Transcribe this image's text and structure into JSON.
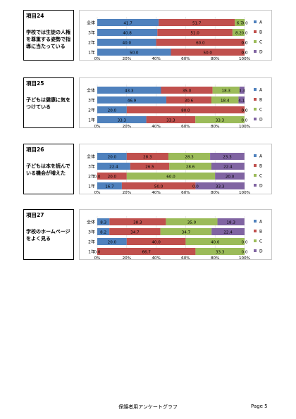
{
  "page": {
    "footer_title": "保護者用アンケートグラフ",
    "page_number": "Page 5"
  },
  "colors": {
    "A": "#4f81bd",
    "B": "#c0504d",
    "C": "#9bbb59",
    "D": "#8064a2"
  },
  "chart_data": [
    {
      "type": "bar",
      "stacked": "horizontal-100",
      "item_title": "項目24",
      "question": "学校では生徒の人権を尊重する姿勢で指導に当たっている",
      "categories": [
        "全体",
        "3年",
        "2年",
        "1年"
      ],
      "series": [
        {
          "name": "A",
          "values": [
            41.7,
            40.8,
            40.0,
            50.0
          ],
          "labels": [
            "41.7",
            "40.8",
            "40.0",
            "50.0"
          ]
        },
        {
          "name": "B",
          "values": [
            51.7,
            51.0,
            60.0,
            50.0
          ],
          "labels": [
            "51.7",
            "51.0",
            "60.0",
            "50.0"
          ]
        },
        {
          "name": "C",
          "values": [
            6.7,
            8.2,
            0.0,
            0.0
          ],
          "labels": [
            "6.7",
            "8.2",
            "0.0",
            "0.0"
          ]
        },
        {
          "name": "D",
          "values": [
            0.0,
            0.0,
            0.0,
            0.0
          ],
          "labels": [
            "0.0",
            "0.0",
            "0.0",
            "0.0"
          ]
        }
      ],
      "x_ticks": [
        "0%",
        "20%",
        "40%",
        "60%",
        "80%",
        "100%"
      ],
      "xlim": [
        0,
        100
      ],
      "legend": [
        "A",
        "B",
        "C",
        "D"
      ]
    },
    {
      "type": "bar",
      "stacked": "horizontal-100",
      "item_title": "項目25",
      "question": "子どもは健康に気をつけている",
      "categories": [
        "全体",
        "3年",
        "2年",
        "1年"
      ],
      "series": [
        {
          "name": "A",
          "values": [
            43.3,
            46.9,
            20.0,
            33.3
          ],
          "labels": [
            "43.3",
            "46.9",
            "20.0",
            "33.3"
          ]
        },
        {
          "name": "B",
          "values": [
            35.0,
            30.6,
            80.0,
            33.3
          ],
          "labels": [
            "35.0",
            "30.6",
            "80.0",
            "33.3"
          ]
        },
        {
          "name": "C",
          "values": [
            18.3,
            18.4,
            0.0,
            33.3
          ],
          "labels": [
            "18.3",
            "18.4",
            "0.0",
            "33.3"
          ]
        },
        {
          "name": "D",
          "values": [
            3.3,
            4.1,
            0.0,
            0.0
          ],
          "labels": [
            "3.3",
            "4.1",
            "0.0",
            "0.0"
          ]
        }
      ],
      "x_ticks": [
        "0%",
        "20%",
        "40%",
        "60%",
        "80%",
        "100%"
      ],
      "xlim": [
        0,
        100
      ],
      "legend": [
        "A",
        "B",
        "C",
        "D"
      ]
    },
    {
      "type": "bar",
      "stacked": "horizontal-100",
      "item_title": "項目26",
      "question": "子どもは本を読んでいる機会が増えた",
      "categories": [
        "全体",
        "3年",
        "2年",
        "1年"
      ],
      "series": [
        {
          "name": "A",
          "values": [
            20.0,
            22.4,
            0.0,
            16.7
          ],
          "labels": [
            "20.0",
            "22.4",
            "0.0",
            "16.7"
          ]
        },
        {
          "name": "B",
          "values": [
            28.3,
            26.5,
            20.0,
            50.0
          ],
          "labels": [
            "28.3",
            "26.5",
            "20.0",
            "50.0"
          ]
        },
        {
          "name": "C",
          "values": [
            28.3,
            28.6,
            60.0,
            0.0
          ],
          "labels": [
            "28.3",
            "28.6",
            "60.0",
            "0.0"
          ]
        },
        {
          "name": "D",
          "values": [
            23.3,
            22.4,
            20.0,
            33.3
          ],
          "labels": [
            "23.3",
            "22.4",
            "20.0",
            "33.3"
          ]
        }
      ],
      "x_ticks": [
        "0%",
        "20%",
        "40%",
        "60%",
        "80%",
        "100%"
      ],
      "xlim": [
        0,
        100
      ],
      "legend": [
        "A",
        "B",
        "C",
        "D"
      ]
    },
    {
      "type": "bar",
      "stacked": "horizontal-100",
      "item_title": "項目27",
      "question": "学校のホームページをよく見る",
      "categories": [
        "全体",
        "3年",
        "2年",
        "1年"
      ],
      "series": [
        {
          "name": "A",
          "values": [
            8.3,
            8.2,
            20.0,
            0.0
          ],
          "labels": [
            "8.3",
            "8.2",
            "20.0",
            "0.0"
          ]
        },
        {
          "name": "B",
          "values": [
            38.3,
            34.7,
            40.0,
            66.7
          ],
          "labels": [
            "38.3",
            "34.7",
            "40.0",
            "66.7"
          ]
        },
        {
          "name": "C",
          "values": [
            35.0,
            34.7,
            40.0,
            33.3
          ],
          "labels": [
            "35.0",
            "34.7",
            "40.0",
            "33.3"
          ]
        },
        {
          "name": "D",
          "values": [
            18.3,
            22.4,
            0.0,
            0.0
          ],
          "labels": [
            "18.3",
            "22.4",
            "0.0",
            "0.0"
          ]
        }
      ],
      "x_ticks": [
        "0%",
        "20%",
        "40%",
        "60%",
        "80%",
        "100%"
      ],
      "xlim": [
        0,
        100
      ],
      "legend": [
        "A",
        "B",
        "C",
        "D"
      ]
    }
  ]
}
